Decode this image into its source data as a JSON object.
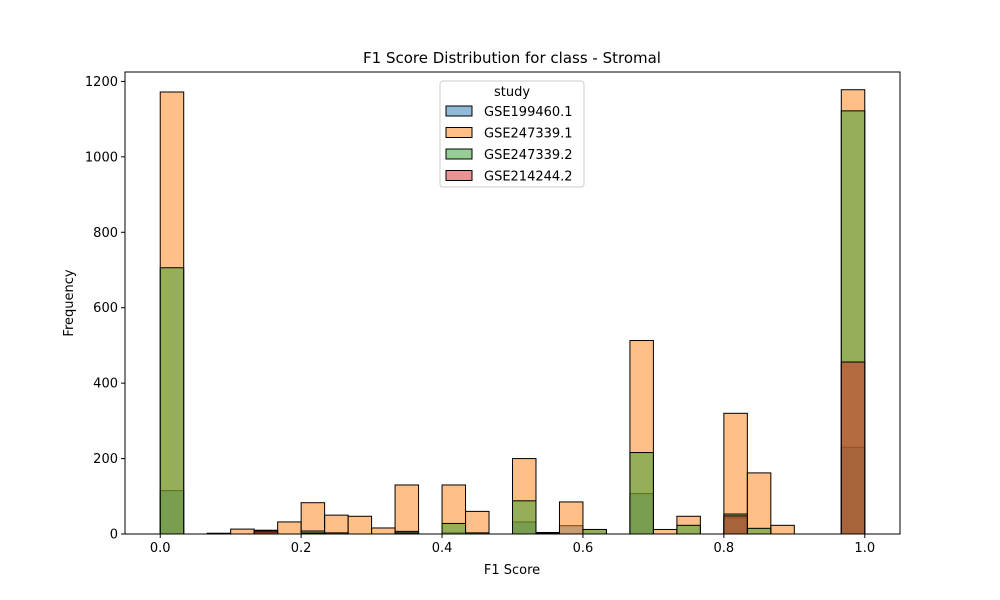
{
  "chart_data": {
    "type": "bar",
    "title": "F1 Score Distribution for class - Stromal",
    "xlabel": "F1 Score",
    "ylabel": "Frequency",
    "xlim": [
      -0.05,
      1.05
    ],
    "ylim": [
      0,
      1225
    ],
    "xticks": [
      0.0,
      0.2,
      0.4,
      0.6,
      0.8,
      1.0
    ],
    "xtick_labels": [
      "0.0",
      "0.2",
      "0.4",
      "0.6",
      "0.8",
      "1.0"
    ],
    "yticks": [
      0,
      200,
      400,
      600,
      800,
      1000,
      1200
    ],
    "ytick_labels": [
      "0",
      "200",
      "400",
      "600",
      "800",
      "1000",
      "1200"
    ],
    "grid": false,
    "legend": {
      "title": "study",
      "placement": "top-center"
    },
    "bin_edges": [
      0.0,
      0.03333,
      0.06667,
      0.1,
      0.13333,
      0.16667,
      0.2,
      0.23333,
      0.26667,
      0.3,
      0.33333,
      0.36667,
      0.4,
      0.43333,
      0.46667,
      0.5,
      0.53333,
      0.56667,
      0.6,
      0.63333,
      0.66667,
      0.7,
      0.73333,
      0.76667,
      0.8,
      0.83333,
      0.86667,
      0.9,
      0.93333,
      0.96667,
      1.0
    ],
    "series": [
      {
        "name": "GSE199460.1",
        "color": "#1f77b4",
        "values": [
          115,
          0,
          0,
          0,
          3,
          0,
          4,
          0,
          0,
          0,
          0,
          0,
          3,
          0,
          0,
          32,
          0,
          22,
          0,
          0,
          107,
          0,
          0,
          0,
          43,
          0,
          0,
          0,
          0,
          230
        ]
      },
      {
        "name": "GSE247339.1",
        "color": "#ff7f0e",
        "values": [
          1172,
          0,
          2,
          13,
          10,
          32,
          83,
          50,
          47,
          16,
          130,
          0,
          130,
          60,
          0,
          200,
          4,
          85,
          12,
          0,
          513,
          12,
          47,
          0,
          320,
          162,
          23,
          0,
          0,
          1178
        ]
      },
      {
        "name": "GSE247339.2",
        "color": "#2ca02c",
        "values": [
          706,
          0,
          0,
          0,
          5,
          0,
          8,
          3,
          0,
          0,
          7,
          0,
          28,
          3,
          0,
          88,
          2,
          0,
          12,
          0,
          216,
          0,
          23,
          0,
          53,
          15,
          0,
          0,
          0,
          1122
        ]
      },
      {
        "name": "GSE214244.2",
        "color": "#d62728",
        "values": [
          0,
          0,
          0,
          0,
          8,
          0,
          2,
          0,
          0,
          0,
          3,
          0,
          0,
          0,
          0,
          0,
          0,
          0,
          0,
          0,
          0,
          0,
          0,
          0,
          48,
          0,
          0,
          0,
          0,
          456
        ]
      }
    ]
  }
}
